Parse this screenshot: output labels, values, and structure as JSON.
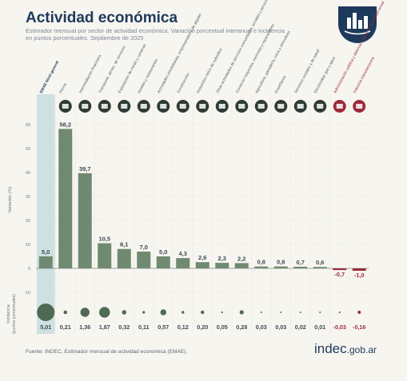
{
  "header": {
    "title": "Actividad económica",
    "subtitle_line1": "Estimador mensual por sector de actividad económica. Variación porcentual interanual e incidencia",
    "subtitle_line2": "en puntos porcentuales. Septiembre de 2025"
  },
  "footer": {
    "source": "Fuente: INDEC, Estimador mensual de actividad económica (EMAE).",
    "brand_main": "indec",
    "brand_domain": ".gob.ar"
  },
  "colors": {
    "positive": "#6f8a70",
    "negative": "#9b2b3c",
    "total_band": "#cfe0e3",
    "navy": "#1d3a5c",
    "grid": "#dcdcd6"
  },
  "chart_data": {
    "type": "bar",
    "ylabel": "Variación (%)",
    "ylim": [
      -18,
      66
    ],
    "yticks": [
      60,
      50,
      40,
      30,
      20,
      10,
      0,
      -10
    ],
    "grid": true,
    "incidence_label": "Incidencia (puntos porcentuales)",
    "categories": [
      "EMAE Nivel general",
      "Pesca",
      "Intermediación financiera",
      "Transporte, almac. de servicios",
      "Explotación de minas y canteras",
      "Hoteles y restaurantes",
      "Actividades inmobiliarias, empresariales y de alquiler",
      "Construcción",
      "Impuestos netos de subsidios",
      "Otras actividades de servicios comunitarios, sociales y personales",
      "Comercio mayorista, minorista y reparaciones",
      "Agricultura, ganadería, caza y silvicultura",
      "Enseñanza",
      "Servicios sociales y de salud",
      "Electricidad, gas y agua",
      "Administración pública y defensa; planes de seguridad social",
      "Industria manufacturera"
    ],
    "icons": [
      "none-icon",
      "fish-icon",
      "bank-icon",
      "truck-icon",
      "mining-icon",
      "hotel-icon",
      "building-icon",
      "crane-icon",
      "tax-icon",
      "people-icon",
      "shop-icon",
      "tractor-icon",
      "school-icon",
      "health-icon",
      "power-icon",
      "government-icon",
      "factory-icon"
    ],
    "values": [
      5.0,
      58.2,
      39.7,
      10.5,
      8.1,
      7.0,
      5.0,
      4.3,
      2.6,
      2.3,
      2.2,
      0.8,
      0.8,
      0.7,
      0.6,
      -0.7,
      -1.0
    ],
    "value_labels": [
      "5,0",
      "58,2",
      "39,7",
      "10,5",
      "8,1",
      "7,0",
      "5,0",
      "4,3",
      "2,6",
      "2,3",
      "2,2",
      "0,8",
      "0,8",
      "0,7",
      "0,6",
      "-0,7",
      "-1,0"
    ],
    "incidence": [
      5.01,
      0.21,
      1.36,
      1.87,
      0.32,
      0.11,
      0.57,
      0.12,
      0.2,
      0.05,
      0.28,
      0.03,
      0.03,
      0.02,
      0.01,
      -0.03,
      -0.16
    ],
    "incidence_labels": [
      "5,01",
      "0,21",
      "1,36",
      "1,87",
      "0,32",
      "0,11",
      "0,57",
      "0,12",
      "0,20",
      "0,05",
      "0,28",
      "0,03",
      "0,03",
      "0,02",
      "0,01",
      "-0,03",
      "-0,16"
    ]
  }
}
